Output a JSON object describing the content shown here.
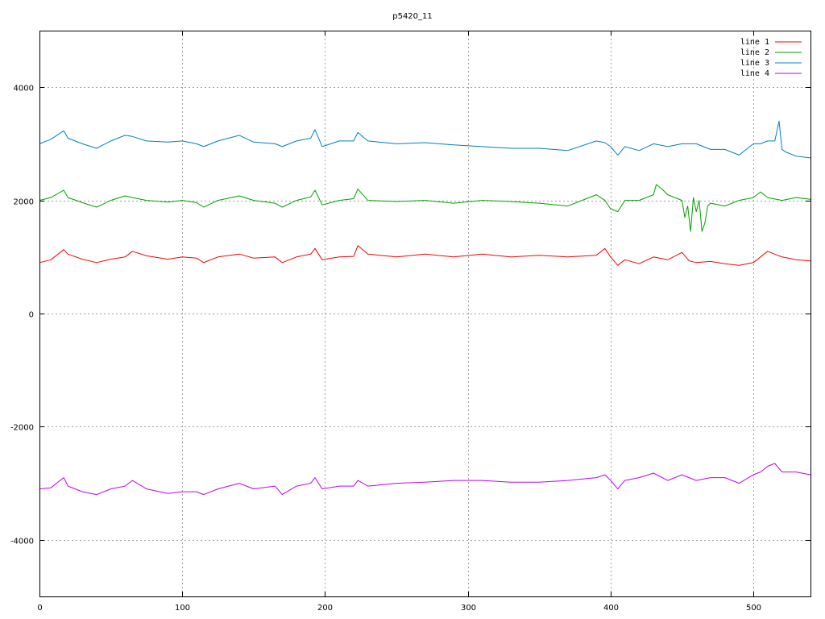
{
  "chart_data": {
    "type": "line",
    "title": "p5420_11",
    "xlabel": "",
    "ylabel": "",
    "xlim": [
      0,
      540
    ],
    "ylim": [
      -5000,
      5000
    ],
    "xticks": [
      0,
      100,
      200,
      300,
      400,
      500
    ],
    "yticks": [
      -4000,
      -2000,
      0,
      2000,
      4000
    ],
    "grid": true,
    "legend_position": "top-right",
    "series": [
      {
        "name": "line 1",
        "color": "#ff0000",
        "x": [
          0,
          8,
          17,
          20,
          30,
          40,
          50,
          60,
          65,
          75,
          90,
          100,
          110,
          115,
          125,
          140,
          150,
          165,
          170,
          180,
          190,
          193,
          198,
          210,
          220,
          223,
          230,
          250,
          270,
          290,
          310,
          330,
          350,
          370,
          390,
          396,
          400,
          405,
          410,
          420,
          430,
          440,
          450,
          455,
          460,
          470,
          480,
          490,
          500,
          510,
          520,
          530,
          540
        ],
        "y": [
          900,
          950,
          1130,
          1050,
          960,
          900,
          960,
          1000,
          1100,
          1020,
          960,
          1000,
          980,
          900,
          1000,
          1050,
          980,
          1000,
          900,
          1000,
          1050,
          1150,
          950,
          1000,
          1010,
          1200,
          1050,
          1000,
          1050,
          1000,
          1050,
          1000,
          1030,
          1000,
          1030,
          1150,
          1000,
          850,
          950,
          880,
          1000,
          950,
          1080,
          930,
          900,
          920,
          880,
          850,
          900,
          1100,
          1000,
          950,
          930
        ]
      },
      {
        "name": "line 2",
        "color": "#00a000",
        "x": [
          0,
          8,
          17,
          20,
          30,
          40,
          50,
          60,
          65,
          75,
          90,
          100,
          110,
          115,
          125,
          140,
          150,
          165,
          170,
          180,
          190,
          193,
          198,
          210,
          220,
          223,
          230,
          250,
          270,
          290,
          310,
          330,
          350,
          370,
          380,
          390,
          396,
          400,
          405,
          410,
          420,
          430,
          432,
          436,
          440,
          445,
          450,
          452,
          454,
          456,
          458,
          460,
          462,
          464,
          466,
          468,
          470,
          480,
          490,
          500,
          505,
          510,
          520,
          530,
          540
        ],
        "y": [
          2000,
          2050,
          2180,
          2050,
          1960,
          1880,
          2000,
          2080,
          2050,
          2000,
          1970,
          2000,
          1960,
          1880,
          2000,
          2080,
          2000,
          1950,
          1880,
          2000,
          2060,
          2180,
          1920,
          2000,
          2030,
          2200,
          2000,
          1980,
          2000,
          1950,
          2000,
          1980,
          1950,
          1900,
          2000,
          2100,
          2000,
          1850,
          1800,
          2000,
          2000,
          2100,
          2280,
          2200,
          2100,
          2050,
          2000,
          1700,
          1900,
          1450,
          2050,
          1800,
          2000,
          1450,
          1600,
          1900,
          1950,
          1900,
          2000,
          2050,
          2150,
          2050,
          2000,
          2050,
          2020
        ]
      },
      {
        "name": "line 3",
        "color": "#0080c0",
        "x": [
          0,
          8,
          17,
          20,
          30,
          40,
          50,
          60,
          65,
          75,
          90,
          100,
          110,
          115,
          125,
          140,
          150,
          165,
          170,
          180,
          190,
          193,
          198,
          210,
          220,
          223,
          230,
          250,
          270,
          290,
          310,
          330,
          350,
          370,
          390,
          396,
          400,
          405,
          410,
          420,
          430,
          440,
          450,
          460,
          470,
          480,
          490,
          500,
          505,
          510,
          515,
          518,
          520,
          523,
          530,
          540
        ],
        "y": [
          3000,
          3080,
          3230,
          3100,
          3000,
          2920,
          3050,
          3150,
          3130,
          3050,
          3030,
          3050,
          3000,
          2950,
          3050,
          3150,
          3030,
          3000,
          2950,
          3050,
          3100,
          3250,
          2950,
          3050,
          3050,
          3200,
          3050,
          3000,
          3020,
          2980,
          2950,
          2920,
          2920,
          2880,
          3050,
          3020,
          2950,
          2800,
          2950,
          2880,
          3000,
          2950,
          3000,
          3000,
          2900,
          2900,
          2800,
          3000,
          3000,
          3050,
          3050,
          3400,
          2900,
          2850,
          2780,
          2750
        ]
      },
      {
        "name": "line 4",
        "color": "#c000ff",
        "x": [
          0,
          8,
          17,
          20,
          30,
          40,
          50,
          60,
          65,
          75,
          90,
          100,
          110,
          115,
          125,
          140,
          150,
          165,
          170,
          180,
          190,
          193,
          198,
          210,
          220,
          223,
          230,
          250,
          270,
          290,
          310,
          330,
          350,
          370,
          390,
          396,
          400,
          405,
          410,
          420,
          430,
          440,
          450,
          460,
          470,
          480,
          490,
          500,
          505,
          510,
          515,
          520,
          530,
          540
        ],
        "y": [
          -3100,
          -3080,
          -2900,
          -3050,
          -3150,
          -3200,
          -3100,
          -3050,
          -2950,
          -3100,
          -3180,
          -3150,
          -3150,
          -3200,
          -3100,
          -3000,
          -3100,
          -3050,
          -3200,
          -3050,
          -3000,
          -2900,
          -3100,
          -3050,
          -3050,
          -2950,
          -3050,
          -3000,
          -2980,
          -2950,
          -2950,
          -2980,
          -2980,
          -2950,
          -2900,
          -2850,
          -2950,
          -3100,
          -2950,
          -2900,
          -2820,
          -2950,
          -2850,
          -2950,
          -2900,
          -2900,
          -3000,
          -2850,
          -2800,
          -2700,
          -2650,
          -2800,
          -2800,
          -2850
        ]
      }
    ]
  }
}
